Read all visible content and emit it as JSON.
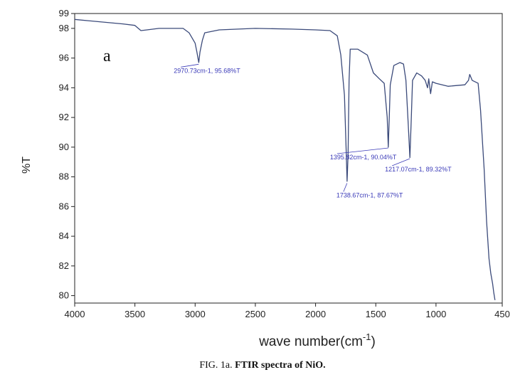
{
  "chart_data": {
    "type": "line",
    "panel_label": "a",
    "xlabel": "wave number(cm",
    "xlabel_superscript": "-1",
    "xlabel_suffix": ")",
    "ylabel": "%T",
    "xlim": [
      4000,
      450
    ],
    "ylim": [
      79.5,
      99
    ],
    "x_reversed": true,
    "x_ticks": [
      "4000",
      "3500",
      "3000",
      "2500",
      "2000",
      "1500",
      "1000",
      "450"
    ],
    "y_ticks": [
      "99",
      "98",
      "96",
      "94",
      "92",
      "90",
      "88",
      "86",
      "84",
      "82",
      "80"
    ],
    "series": [
      {
        "color": "#3b4a7a",
        "points": [
          [
            4000,
            98.6
          ],
          [
            3800,
            98.45
          ],
          [
            3600,
            98.3
          ],
          [
            3500,
            98.2
          ],
          [
            3450,
            97.85
          ],
          [
            3400,
            97.9
          ],
          [
            3300,
            98.0
          ],
          [
            3100,
            98.0
          ],
          [
            3050,
            97.7
          ],
          [
            3000,
            97.0
          ],
          [
            2985,
            96.4
          ],
          [
            2970,
            95.7
          ],
          [
            2960,
            96.4
          ],
          [
            2940,
            97.2
          ],
          [
            2920,
            97.7
          ],
          [
            2800,
            97.9
          ],
          [
            2500,
            98.0
          ],
          [
            2200,
            97.95
          ],
          [
            2000,
            97.9
          ],
          [
            1880,
            97.85
          ],
          [
            1820,
            97.5
          ],
          [
            1790,
            96.2
          ],
          [
            1760,
            93.5
          ],
          [
            1745,
            89.5
          ],
          [
            1738,
            87.7
          ],
          [
            1730,
            89.5
          ],
          [
            1722,
            94.5
          ],
          [
            1712,
            96.6
          ],
          [
            1650,
            96.6
          ],
          [
            1570,
            96.2
          ],
          [
            1520,
            95.0
          ],
          [
            1470,
            94.6
          ],
          [
            1430,
            94.3
          ],
          [
            1405,
            92.0
          ],
          [
            1396,
            90.0
          ],
          [
            1388,
            92.0
          ],
          [
            1380,
            94.2
          ],
          [
            1350,
            95.5
          ],
          [
            1300,
            95.7
          ],
          [
            1270,
            95.6
          ],
          [
            1250,
            94.5
          ],
          [
            1230,
            91.5
          ],
          [
            1217,
            89.3
          ],
          [
            1205,
            92.0
          ],
          [
            1195,
            94.5
          ],
          [
            1160,
            95.0
          ],
          [
            1120,
            94.8
          ],
          [
            1090,
            94.5
          ],
          [
            1070,
            94.0
          ],
          [
            1060,
            94.6
          ],
          [
            1045,
            93.6
          ],
          [
            1030,
            94.4
          ],
          [
            1000,
            94.3
          ],
          [
            900,
            94.1
          ],
          [
            760,
            94.2
          ],
          [
            730,
            94.5
          ],
          [
            720,
            94.9
          ],
          [
            700,
            94.5
          ],
          [
            650,
            94.3
          ],
          [
            630,
            92.5
          ],
          [
            600,
            88.5
          ],
          [
            580,
            85.0
          ],
          [
            560,
            82.5
          ],
          [
            545,
            81.5
          ],
          [
            530,
            80.8
          ],
          [
            520,
            80.2
          ],
          [
            510,
            79.7
          ]
        ]
      }
    ],
    "annotations": [
      {
        "x": 2970.73,
        "y": 95.68,
        "text": "2970.73cm-1, 95.68%T"
      },
      {
        "x": 1738.67,
        "y": 87.67,
        "text": "1738.67cm-1, 87.67%T"
      },
      {
        "x": 1395.82,
        "y": 90.04,
        "text": "1395.82cm-1, 90.04%T"
      },
      {
        "x": 1217.07,
        "y": 89.32,
        "text": "1217.07cm-1, 89.32%T"
      }
    ],
    "grid": false,
    "legend": "none"
  },
  "caption": {
    "prefix": "FIG. 1a.",
    "bold": "FTIR spectra of NiO."
  }
}
